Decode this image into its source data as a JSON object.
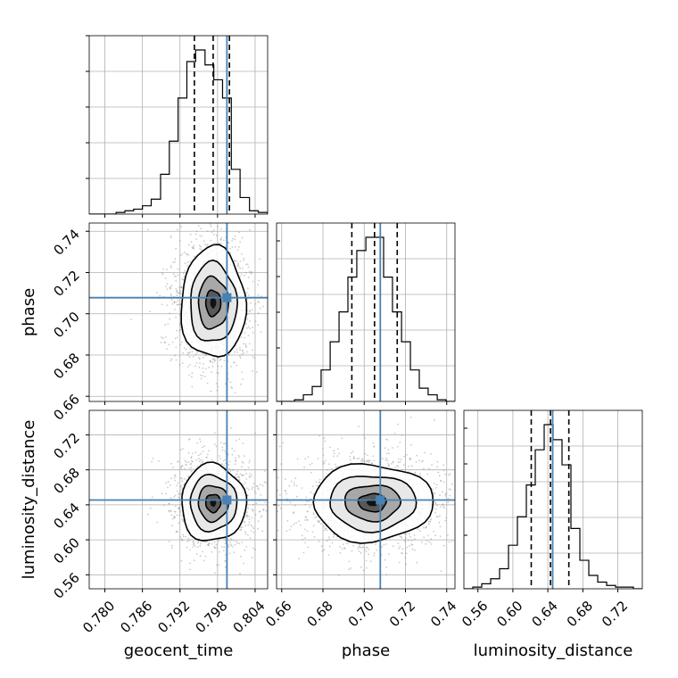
{
  "chart_data": {
    "type": "corner",
    "parameters": [
      "geocent_time",
      "phase",
      "luminosity_distance"
    ],
    "injection": {
      "geocent_time": 0.7995,
      "phase": 0.7078,
      "luminosity_distance": 0.6455
    },
    "quantiles": {
      "geocent_time": [
        0.7943,
        0.7973,
        0.7999
      ],
      "phase": [
        0.694,
        0.705,
        0.716
      ],
      "luminosity_distance": [
        0.621,
        0.643,
        0.664
      ]
    },
    "axes": {
      "geocent_time": {
        "range": [
          0.7775,
          0.806
        ],
        "ticks": [
          0.78,
          0.786,
          0.792,
          0.798,
          0.804
        ],
        "tick_labels": [
          "0.780",
          "0.786",
          "0.792",
          "0.798",
          "0.804"
        ]
      },
      "phase": {
        "range": [
          0.6575,
          0.744
        ],
        "ticks": [
          0.66,
          0.68,
          0.7,
          0.72,
          0.74
        ],
        "tick_labels": [
          "0.66",
          "0.68",
          "0.70",
          "0.72",
          "0.74"
        ]
      },
      "luminosity_distance": {
        "range": [
          0.544,
          0.748
        ],
        "ticks": [
          0.56,
          0.6,
          0.64,
          0.68,
          0.72
        ],
        "tick_labels": [
          "0.56",
          "0.60",
          "0.64",
          "0.68",
          "0.72"
        ]
      }
    },
    "histograms": {
      "geocent_time": {
        "edges": [
          0.7775,
          0.7789,
          0.7803,
          0.7818,
          0.7832,
          0.7846,
          0.786,
          0.7874,
          0.7889,
          0.7903,
          0.7917,
          0.7931,
          0.7945,
          0.796,
          0.7974,
          0.7988,
          0.8002,
          0.8016,
          0.8031,
          0.8045,
          0.806
        ],
        "counts": [
          0,
          0,
          0,
          1,
          2,
          3,
          5,
          9,
          24,
          44,
          70,
          92,
          99,
          90,
          81,
          70,
          27,
          10,
          2,
          1
        ]
      },
      "phase": {
        "edges": [
          0.6575,
          0.6618,
          0.6662,
          0.6705,
          0.6748,
          0.6791,
          0.6835,
          0.6878,
          0.6921,
          0.6964,
          0.7008,
          0.7051,
          0.7094,
          0.7137,
          0.7181,
          0.7224,
          0.7267,
          0.731,
          0.7354,
          0.7397,
          0.744
        ],
        "counts": [
          0,
          0,
          1,
          4,
          9,
          19,
          36,
          54,
          75,
          91,
          99,
          99,
          75,
          54,
          36,
          19,
          8,
          4,
          1,
          0
        ]
      },
      "luminosity_distance": {
        "edges": [
          0.544,
          0.5542,
          0.5644,
          0.5746,
          0.5848,
          0.595,
          0.6052,
          0.6154,
          0.6256,
          0.6358,
          0.646,
          0.6562,
          0.6664,
          0.6766,
          0.6868,
          0.697,
          0.7072,
          0.7174,
          0.7276,
          0.7378,
          0.748
        ],
        "counts": [
          0,
          1,
          3,
          6,
          12,
          26,
          43,
          62,
          83,
          98,
          89,
          74,
          36,
          17,
          8,
          4,
          2,
          1,
          1,
          0
        ]
      }
    },
    "panels_2d": [
      {
        "x": "geocent_time",
        "y": "phase",
        "center": [
          0.7973,
          0.7052
        ],
        "sigma": [
          0.0024,
          0.0125
        ]
      },
      {
        "x": "geocent_time",
        "y": "luminosity_distance",
        "center": [
          0.7973,
          0.642
        ],
        "sigma": [
          0.0024,
          0.0205
        ]
      },
      {
        "x": "phase",
        "y": "luminosity_distance",
        "center": [
          0.704,
          0.6425
        ],
        "sigma": [
          0.0135,
          0.0205
        ]
      }
    ],
    "grid": true,
    "colors": {
      "truth": "#4682b4",
      "hist": "#000000",
      "quantile": "#000000",
      "grid": "#b0b0b0",
      "points": "#8c8c8c"
    }
  }
}
